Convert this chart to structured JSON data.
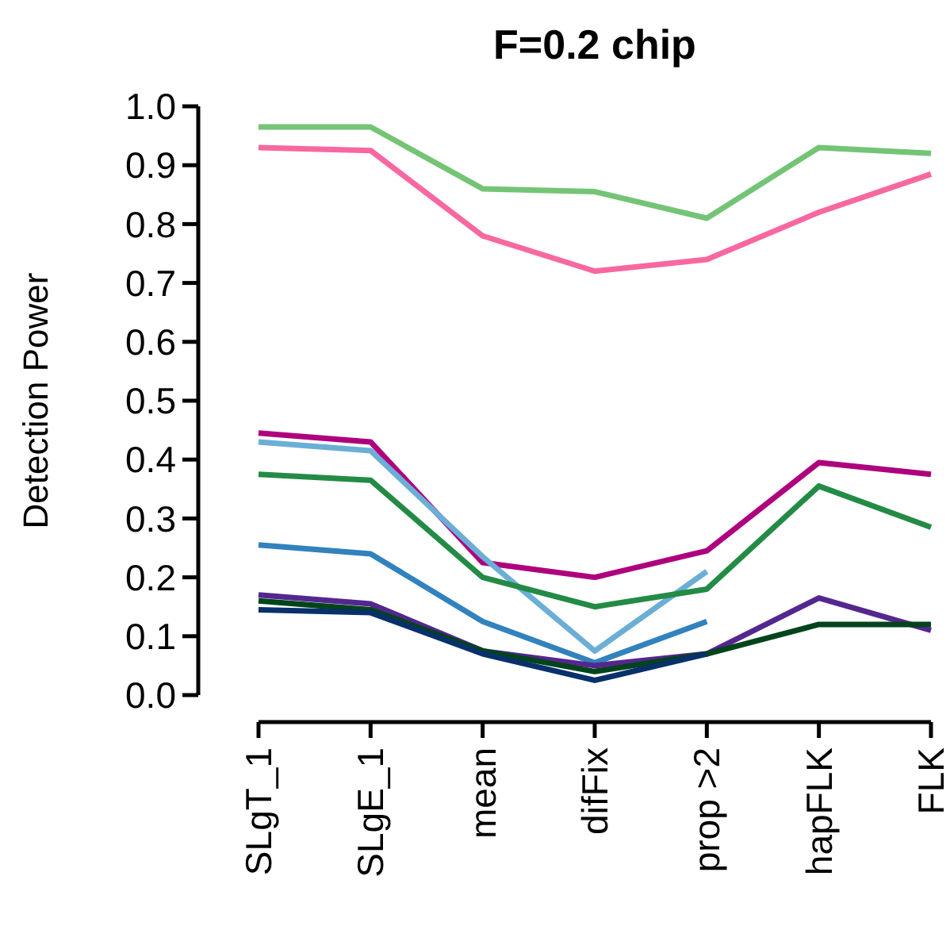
{
  "chart_data": {
    "type": "line",
    "title": "F=0.2 chip",
    "ylabel": "Detection Power",
    "categories": [
      "SLgT_1",
      "SLgE_1",
      "mean",
      "difFix",
      "prop >2",
      "hapFLK",
      "FLK"
    ],
    "ylim": [
      0,
      1
    ],
    "yticks": [
      {
        "value": 0,
        "label": "0.0"
      },
      0.1,
      0.2,
      0.3,
      0.4,
      0.5,
      0.6,
      0.7,
      0.8,
      0.9,
      {
        "value": 1,
        "label": "1.0"
      }
    ],
    "grid": false,
    "marker": "none",
    "line_style": "solid",
    "series": [
      {
        "color": "#74c476",
        "values": [
          0.965,
          0.965,
          0.86,
          0.855,
          0.81,
          0.93,
          0.92
        ]
      },
      {
        "color": "#f768a1",
        "values": [
          0.93,
          0.925,
          0.78,
          0.72,
          0.74,
          0.82,
          0.885
        ]
      },
      {
        "color": "#ae017e",
        "values": [
          0.445,
          0.43,
          0.225,
          0.2,
          0.245,
          0.395,
          0.375
        ]
      },
      {
        "color": "#6baed6",
        "values": [
          0.43,
          0.415,
          0.235,
          0.075,
          0.21,
          null,
          null
        ]
      },
      {
        "color": "#238b45",
        "values": [
          0.375,
          0.365,
          0.2,
          0.15,
          0.18,
          0.355,
          0.285
        ]
      },
      {
        "color": "#3182bd",
        "values": [
          0.255,
          0.24,
          0.125,
          0.055,
          0.125,
          null,
          null
        ]
      },
      {
        "color": "#54278f",
        "values": [
          0.17,
          0.155,
          0.075,
          0.05,
          0.07,
          0.165,
          0.11
        ]
      },
      {
        "color": "#00441b",
        "values": [
          0.16,
          0.145,
          0.075,
          0.04,
          0.07,
          0.12,
          0.12
        ]
      },
      {
        "color": "#08306b",
        "values": [
          0.145,
          0.14,
          0.07,
          0.025,
          0.07,
          null,
          null
        ]
      }
    ]
  }
}
